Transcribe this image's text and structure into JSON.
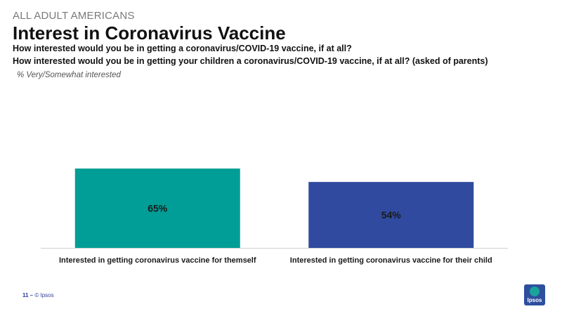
{
  "header": {
    "eyebrow": "ALL ADULT AMERICANS",
    "title": "Interest in Coronavirus Vaccine",
    "question_1": "How interested would you be in getting a coronavirus/COVID-19 vaccine, if at all?",
    "question_2": "How interested would you be in getting your children a coronavirus/COVID-19 vaccine, if at all? (asked of parents)",
    "note": "% Very/Somewhat interested"
  },
  "footer": {
    "page": "11 –",
    "copyright": "© Ipsos",
    "logo_text": "Ipsos"
  },
  "colors": {
    "bar_1": "#009e96",
    "bar_2": "#2f4a9e",
    "axis": "#d0d0d0"
  },
  "chart_data": {
    "type": "bar",
    "categories": [
      "Interested in getting coronavirus vaccine for themself",
      "Interested in getting coronavirus vaccine for their child"
    ],
    "values": [
      65,
      54
    ],
    "data_labels": [
      "65%",
      "54%"
    ],
    "ylim": [
      0,
      100
    ],
    "grid": false
  }
}
